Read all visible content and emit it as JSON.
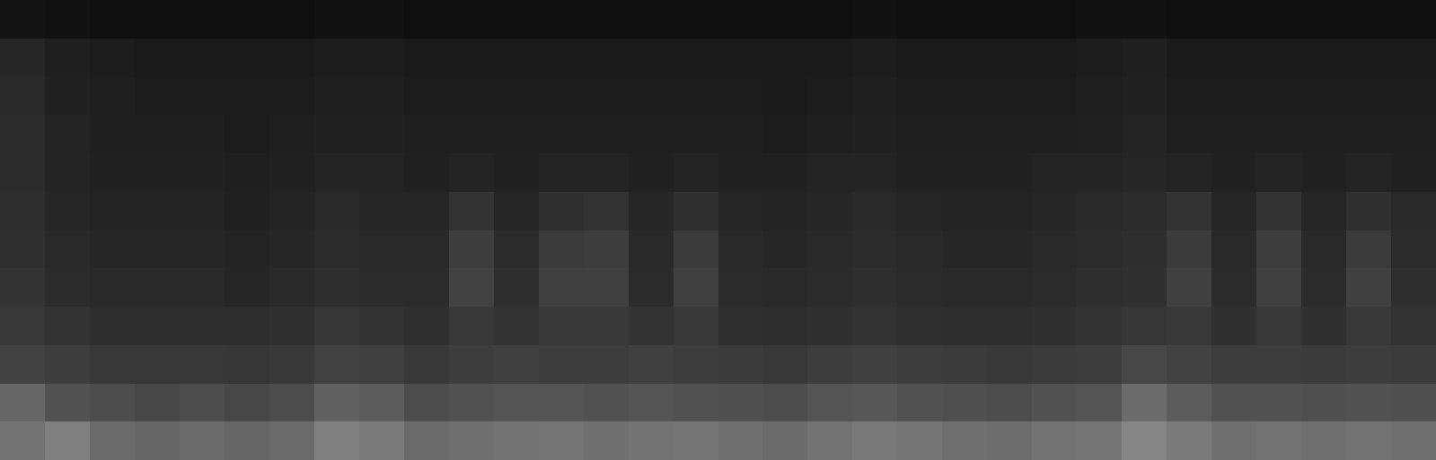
{
  "chart_data": {
    "type": "heatmap",
    "color": "gray",
    "tick_labels": false,
    "grid": false,
    "zlim": [
      0,
      1
    ],
    "z": [
      [
        0.45,
        0.5,
        0.42,
        0.4,
        0.42,
        0.4,
        0.42,
        0.5,
        0.48,
        0.42,
        0.44,
        0.45,
        0.46,
        0.44,
        0.45,
        0.46,
        0.44,
        0.42,
        0.45,
        0.47,
        0.46,
        0.44,
        0.43,
        0.45,
        0.46,
        0.52,
        0.48,
        0.44,
        0.45,
        0.44,
        0.45,
        0.44
      ],
      [
        0.4,
        0.32,
        0.3,
        0.28,
        0.3,
        0.28,
        0.3,
        0.38,
        0.36,
        0.3,
        0.32,
        0.33,
        0.33,
        0.32,
        0.33,
        0.32,
        0.31,
        0.3,
        0.33,
        0.34,
        0.32,
        0.31,
        0.3,
        0.32,
        0.33,
        0.42,
        0.36,
        0.32,
        0.32,
        0.31,
        0.32,
        0.31
      ],
      [
        0.26,
        0.24,
        0.22,
        0.22,
        0.22,
        0.21,
        0.22,
        0.26,
        0.25,
        0.22,
        0.24,
        0.25,
        0.24,
        0.24,
        0.25,
        0.24,
        0.23,
        0.22,
        0.24,
        0.25,
        0.24,
        0.23,
        0.22,
        0.23,
        0.24,
        0.28,
        0.26,
        0.24,
        0.24,
        0.23,
        0.24,
        0.23
      ],
      [
        0.22,
        0.2,
        0.18,
        0.18,
        0.18,
        0.18,
        0.19,
        0.21,
        0.2,
        0.19,
        0.22,
        0.2,
        0.22,
        0.22,
        0.2,
        0.22,
        0.19,
        0.18,
        0.19,
        0.2,
        0.19,
        0.18,
        0.18,
        0.19,
        0.2,
        0.21,
        0.22,
        0.19,
        0.22,
        0.19,
        0.22,
        0.2
      ],
      [
        0.2,
        0.17,
        0.16,
        0.16,
        0.16,
        0.15,
        0.16,
        0.18,
        0.17,
        0.17,
        0.26,
        0.18,
        0.25,
        0.25,
        0.17,
        0.25,
        0.17,
        0.16,
        0.17,
        0.18,
        0.17,
        0.16,
        0.16,
        0.17,
        0.18,
        0.19,
        0.25,
        0.17,
        0.25,
        0.17,
        0.25,
        0.18
      ],
      [
        0.19,
        0.16,
        0.15,
        0.15,
        0.15,
        0.14,
        0.15,
        0.17,
        0.16,
        0.16,
        0.24,
        0.17,
        0.23,
        0.24,
        0.16,
        0.23,
        0.16,
        0.15,
        0.16,
        0.17,
        0.16,
        0.15,
        0.15,
        0.16,
        0.17,
        0.18,
        0.23,
        0.16,
        0.24,
        0.16,
        0.23,
        0.17
      ],
      [
        0.18,
        0.15,
        0.14,
        0.14,
        0.14,
        0.13,
        0.14,
        0.16,
        0.15,
        0.15,
        0.2,
        0.15,
        0.19,
        0.2,
        0.15,
        0.19,
        0.15,
        0.14,
        0.15,
        0.16,
        0.15,
        0.14,
        0.14,
        0.15,
        0.16,
        0.17,
        0.2,
        0.15,
        0.2,
        0.15,
        0.19,
        0.16
      ],
      [
        0.17,
        0.14,
        0.13,
        0.13,
        0.13,
        0.12,
        0.13,
        0.14,
        0.14,
        0.13,
        0.14,
        0.13,
        0.14,
        0.14,
        0.13,
        0.14,
        0.13,
        0.13,
        0.14,
        0.14,
        0.13,
        0.13,
        0.13,
        0.14,
        0.14,
        0.15,
        0.14,
        0.13,
        0.14,
        0.13,
        0.14,
        0.13
      ],
      [
        0.17,
        0.14,
        0.12,
        0.12,
        0.12,
        0.11,
        0.12,
        0.13,
        0.13,
        0.12,
        0.12,
        0.12,
        0.12,
        0.12,
        0.12,
        0.12,
        0.12,
        0.11,
        0.12,
        0.13,
        0.12,
        0.12,
        0.12,
        0.12,
        0.13,
        0.14,
        0.12,
        0.12,
        0.12,
        0.12,
        0.12,
        0.12
      ],
      [
        0.16,
        0.13,
        0.12,
        0.11,
        0.11,
        0.11,
        0.11,
        0.12,
        0.12,
        0.11,
        0.11,
        0.11,
        0.11,
        0.11,
        0.11,
        0.11,
        0.11,
        0.1,
        0.11,
        0.12,
        0.11,
        0.11,
        0.11,
        0.11,
        0.12,
        0.13,
        0.11,
        0.11,
        0.11,
        0.11,
        0.11,
        0.11
      ],
      [
        0.15,
        0.12,
        0.11,
        0.1,
        0.1,
        0.1,
        0.1,
        0.11,
        0.11,
        0.1,
        0.1,
        0.1,
        0.1,
        0.1,
        0.1,
        0.1,
        0.1,
        0.1,
        0.1,
        0.11,
        0.1,
        0.1,
        0.1,
        0.1,
        0.11,
        0.12,
        0.1,
        0.1,
        0.1,
        0.1,
        0.1,
        0.1
      ],
      [
        0.08,
        0.07,
        0.06,
        0.06,
        0.06,
        0.06,
        0.06,
        0.07,
        0.07,
        0.06,
        0.06,
        0.06,
        0.06,
        0.06,
        0.06,
        0.06,
        0.06,
        0.06,
        0.06,
        0.07,
        0.06,
        0.06,
        0.06,
        0.06,
        0.07,
        0.07,
        0.06,
        0.06,
        0.06,
        0.06,
        0.06,
        0.06
      ]
    ]
  }
}
